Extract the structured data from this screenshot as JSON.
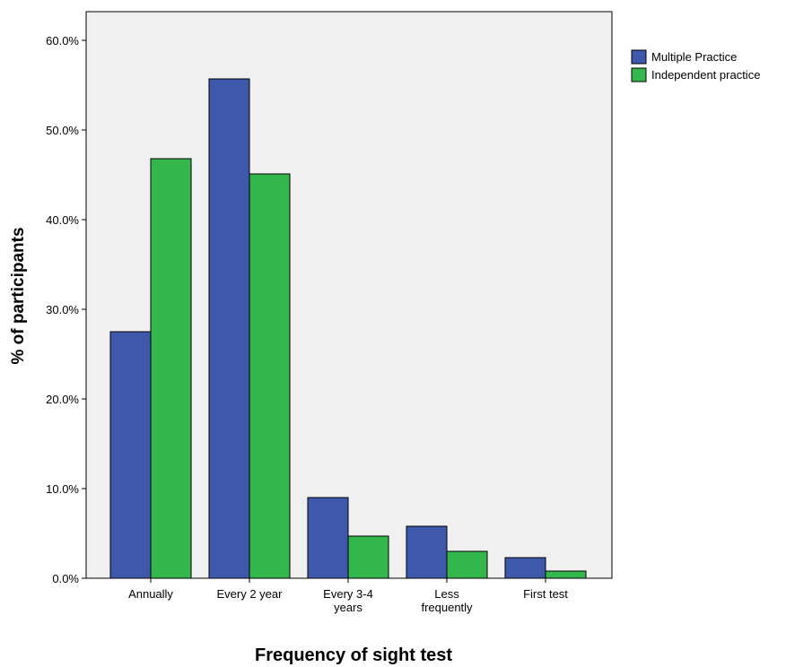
{
  "chart_data": {
    "type": "bar",
    "title": "",
    "xlabel": "Frequency of sight test",
    "ylabel": "% of participants",
    "categories": [
      [
        "Annually"
      ],
      [
        "Every 2 year"
      ],
      [
        "Every 3-4",
        "years"
      ],
      [
        "Less",
        "frequently"
      ],
      [
        "First test"
      ]
    ],
    "series": [
      {
        "name": "Multiple Practice",
        "color": "#3e58ac",
        "values": [
          27.5,
          55.7,
          9.0,
          5.8,
          2.3
        ]
      },
      {
        "name": "Independent practice",
        "color": "#33b64c",
        "values": [
          46.8,
          45.1,
          4.7,
          3.0,
          0.8
        ]
      }
    ],
    "ylim": [
      0,
      60
    ],
    "yticks": [
      0,
      10,
      20,
      30,
      40,
      50,
      60
    ],
    "ytick_labels": [
      "0.0%",
      "10.0%",
      "20.0%",
      "30.0%",
      "40.0%",
      "50.0%",
      "60.0%"
    ],
    "legend_position": "top-right",
    "grid": false,
    "plot_background": "#f0f0f0"
  }
}
